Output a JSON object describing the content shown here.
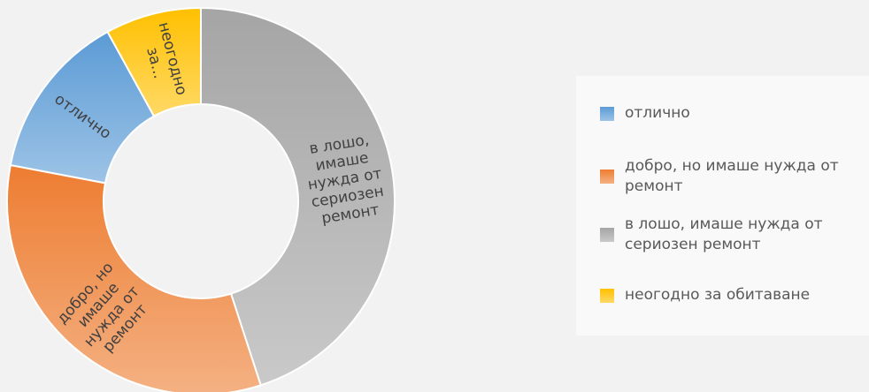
{
  "chart_data": {
    "type": "donut",
    "categories": [
      "отлично",
      "добро, но имаше нужда от ремонт",
      "в лошо, имаше нужда от сериозен ремонт",
      "неогодно за обитаване"
    ],
    "values": [
      14,
      33,
      45,
      8
    ],
    "slice_labels": [
      [
        "отлично"
      ],
      [
        "добро, но",
        "имаше",
        "нужда от",
        "ремонт"
      ],
      [
        "в лошо,",
        "имаше",
        "нужда от",
        "сериозен",
        "ремонт"
      ],
      [
        "неогодно",
        "за..."
      ]
    ],
    "colors": [
      [
        "#5b9bd5",
        "#9dc3e6"
      ],
      [
        "#ed7d31",
        "#f4b183"
      ],
      [
        "#a5a5a5",
        "#c9c9c9"
      ],
      [
        "#ffc000",
        "#ffd966"
      ]
    ],
    "legend": {
      "position": "right",
      "items": [
        {
          "lines": [
            "отлично"
          ],
          "color": "#5b9bd5"
        },
        {
          "lines": [
            "добро, но имаше нужда от",
            "ремонт"
          ],
          "color": "#ed7d31"
        },
        {
          "lines": [
            "в лошо, имаше нужда от",
            "сериозен ремонт"
          ],
          "color": "#a5a5a5"
        },
        {
          "lines": [
            "неогодно за обитаване"
          ],
          "color": "#ffc000"
        }
      ]
    }
  }
}
